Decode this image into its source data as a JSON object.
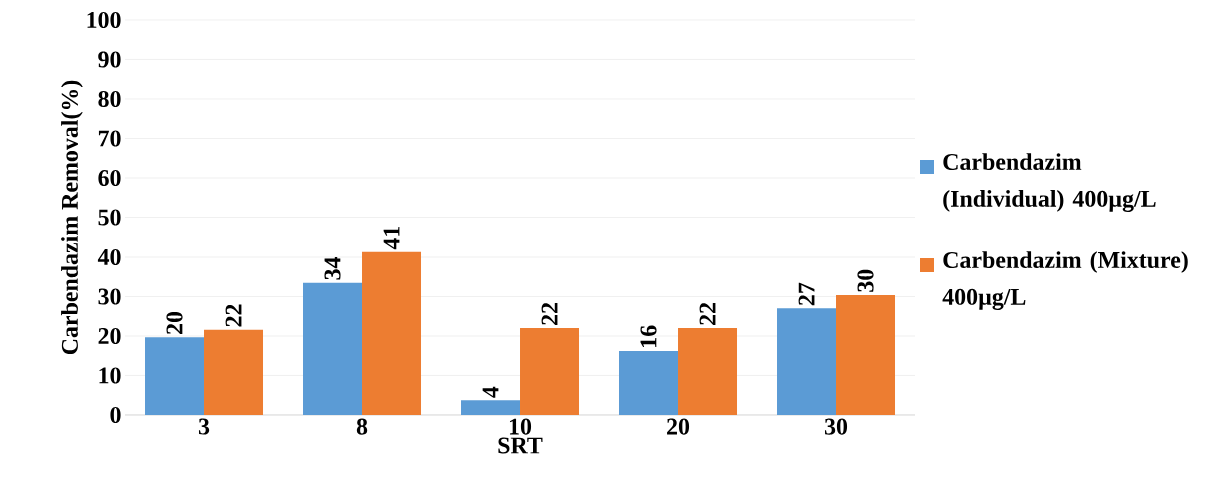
{
  "chart_data": {
    "type": "bar",
    "xlabel": "SRT",
    "ylabel": "Carbendazim Removal(%)",
    "categories": [
      "3",
      "8",
      "10",
      "20",
      "30"
    ],
    "series": [
      {
        "name": "Carbendazim (Individual) 400µg/L",
        "color": "#5b9bd5",
        "values": [
          19.7,
          33.5,
          3.7,
          16.2,
          27.0
        ],
        "value_labels": [
          "20",
          "34",
          "4",
          "16",
          "27"
        ]
      },
      {
        "name": "Carbendazim (Mixture) 400µg/L",
        "color": "#ed7d31",
        "values": [
          21.6,
          41.3,
          22.0,
          22.0,
          30.4
        ],
        "value_labels": [
          "22",
          "41",
          "22",
          "22",
          "30"
        ]
      }
    ],
    "ylim": [
      0,
      100
    ],
    "yticks": [
      0,
      10,
      20,
      30,
      40,
      50,
      60,
      70,
      80,
      90,
      100
    ],
    "grid": "y",
    "legend": "right"
  }
}
